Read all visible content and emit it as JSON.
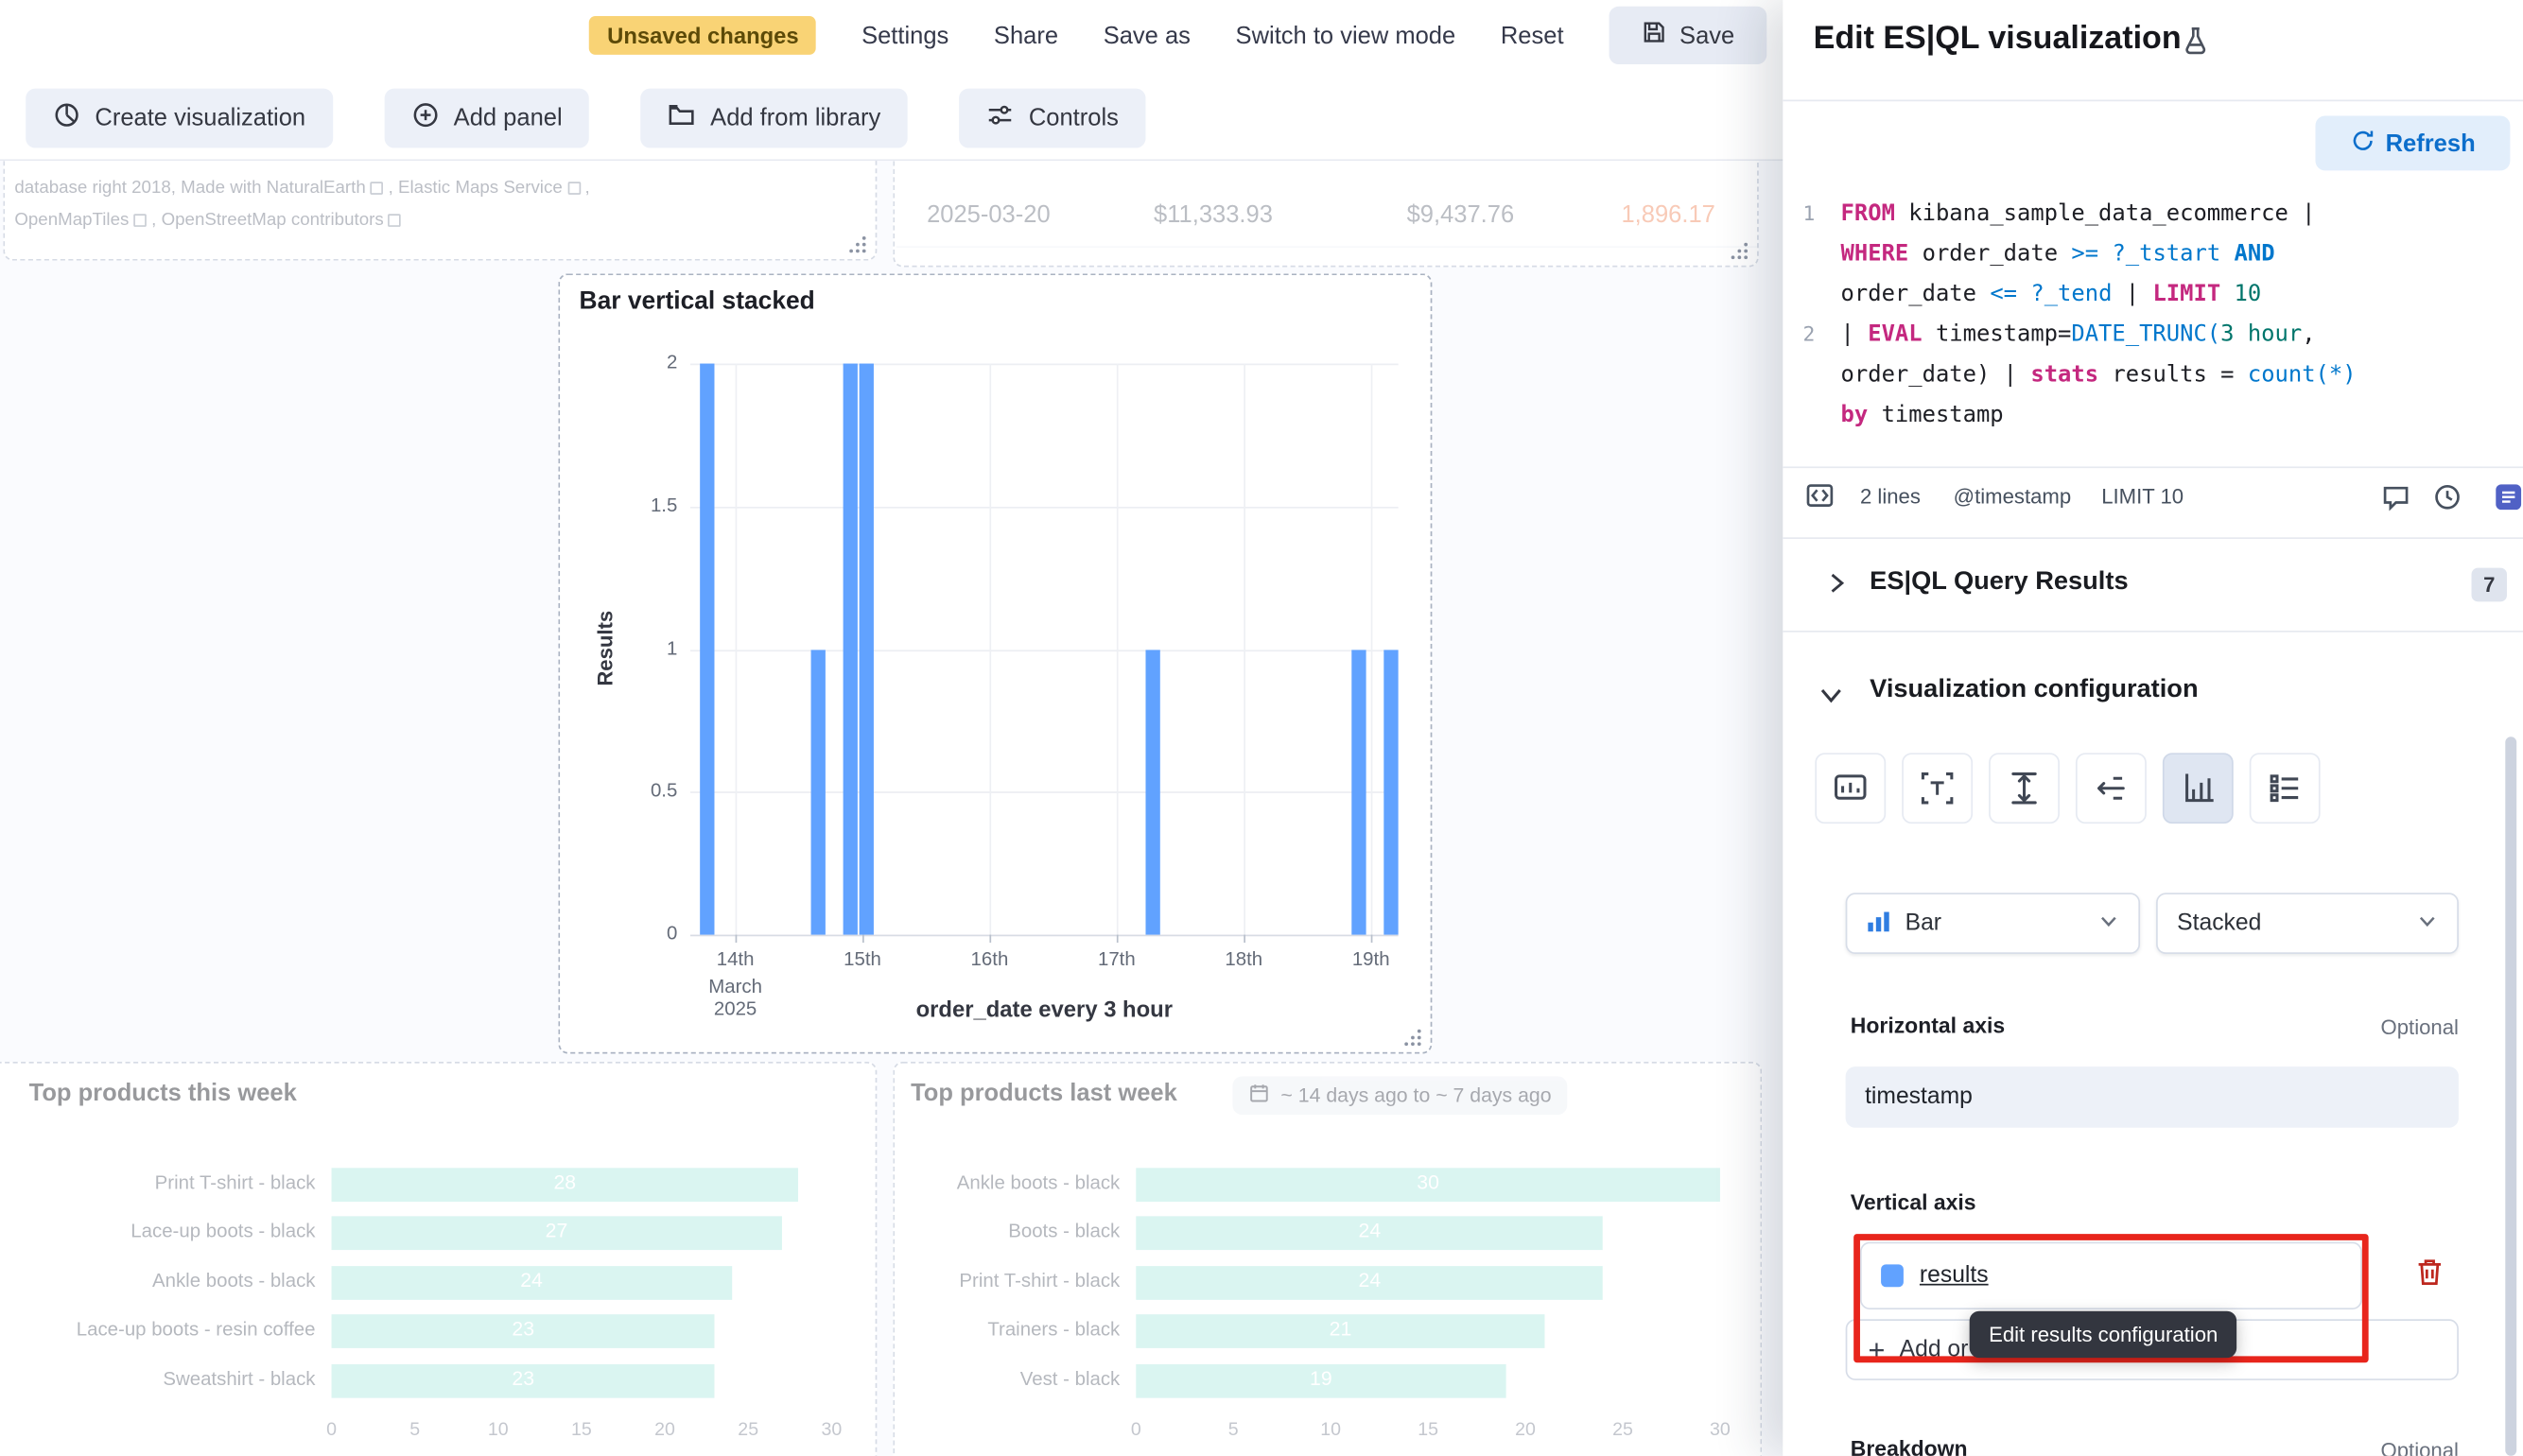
{
  "app_title": "Edit ES|QL visualization",
  "colors": {
    "accent_blue": "#0077CC",
    "bar_blue": "#61A2FF",
    "teal_bar": "#AEE9E1",
    "warning_badge_bg": "#F9D375",
    "annotation_red": "#E8251C",
    "danger_red": "#BD271E"
  },
  "top_toolbar": {
    "unsaved_badge": "Unsaved changes",
    "items": [
      "Settings",
      "Share",
      "Save as",
      "Switch to view mode",
      "Reset"
    ],
    "save_label": "Save"
  },
  "edit_toolbar": {
    "create_visualization": "Create visualization",
    "add_panel": "Add panel",
    "add_from_library": "Add from library",
    "controls": "Controls"
  },
  "map_attribution": {
    "line1_prefix": "database right 2018, ",
    "link1": "Made with NaturalEarth",
    "sep1": ", ",
    "link2": "Elastic Maps Service",
    "line1_suffix": ",",
    "link3": "OpenMapTiles",
    "sep2": ", ",
    "link4": "OpenStreetMap contributors"
  },
  "metrics_table": {
    "row": [
      "2025-03-20",
      "$11,333.93",
      "$9,437.76",
      "1,896.17"
    ]
  },
  "chart_data": [
    {
      "id": "bar_vertical_stacked",
      "type": "bar",
      "title": "Bar vertical stacked",
      "xlabel": "order_date every 3 hour",
      "ylabel": "Results",
      "ylim": [
        0,
        2
      ],
      "y_ticks": [
        0,
        0.5,
        1,
        1.5,
        2
      ],
      "x_ticks": [
        "14th",
        "15th",
        "16th",
        "17th",
        "18th",
        "19th"
      ],
      "x_context": "March 2025",
      "slots_per_day": 8,
      "bars": [
        {
          "slot": 0,
          "value": 2
        },
        {
          "slot": 7,
          "value": 1
        },
        {
          "slot": 9,
          "value": 2
        },
        {
          "slot": 10,
          "value": 2
        },
        {
          "slot": 28,
          "value": 1
        },
        {
          "slot": 41,
          "value": 1
        },
        {
          "slot": 43,
          "value": 1
        }
      ],
      "color": "#61A2FF",
      "grid": true,
      "legend": "none"
    },
    {
      "id": "top_products_this_week",
      "type": "bar",
      "orientation": "horizontal",
      "title": "Top products this week",
      "categories": [
        "Print T-shirt - black",
        "Lace-up boots - black",
        "Ankle boots - black",
        "Lace-up boots - resin coffee",
        "Sweatshirt - black"
      ],
      "values": [
        28,
        27,
        24,
        23,
        23
      ],
      "xlim": [
        0,
        30
      ],
      "x_ticks": [
        0,
        5,
        10,
        15,
        20,
        25,
        30
      ],
      "color": "#AEE9E1",
      "value_labels": true
    },
    {
      "id": "top_products_last_week",
      "type": "bar",
      "orientation": "horizontal",
      "title": "Top products last week",
      "time_badge": "~ 14 days ago to ~ 7 days ago",
      "categories": [
        "Ankle boots - black",
        "Boots - black",
        "Print T-shirt - black",
        "Trainers - black",
        "Vest - black"
      ],
      "values": [
        30,
        24,
        24,
        21,
        19
      ],
      "xlim": [
        0,
        30
      ],
      "x_ticks": [
        0,
        5,
        10,
        15,
        20,
        25,
        30
      ],
      "color": "#AEE9E1",
      "value_labels": true
    }
  ],
  "flyout": {
    "title": "Edit ES|QL visualization",
    "refresh_label": "Refresh",
    "editor": {
      "rows": [
        {
          "ln": "1",
          "tokens": [
            {
              "t": "FROM",
              "c": "kw"
            },
            {
              "t": " kibana_sample_data_ecommerce | ",
              "c": "tx"
            }
          ]
        },
        {
          "ln": "",
          "tokens": [
            {
              "t": "WHERE",
              "c": "kw"
            },
            {
              "t": " order_date ",
              "c": "tx"
            },
            {
              "t": ">=",
              "c": "op"
            },
            {
              "t": " ",
              "c": "tx"
            },
            {
              "t": "?_tstart",
              "c": "op"
            },
            {
              "t": " ",
              "c": "tx"
            },
            {
              "t": "AND",
              "c": "opb"
            }
          ]
        },
        {
          "ln": "",
          "tokens": [
            {
              "t": "order_date ",
              "c": "tx"
            },
            {
              "t": "<=",
              "c": "op"
            },
            {
              "t": " ",
              "c": "tx"
            },
            {
              "t": "?_tend",
              "c": "op"
            },
            {
              "t": " | ",
              "c": "tx"
            },
            {
              "t": "LIMIT",
              "c": "kw"
            },
            {
              "t": " ",
              "c": "tx"
            },
            {
              "t": "10",
              "c": "num"
            }
          ]
        },
        {
          "ln": "2",
          "tokens": [
            {
              "t": "| ",
              "c": "tx"
            },
            {
              "t": "EVAL",
              "c": "kw"
            },
            {
              "t": " timestamp=",
              "c": "tx"
            },
            {
              "t": "DATE_TRUNC(",
              "c": "fn"
            },
            {
              "t": "3 hour",
              "c": "num"
            },
            {
              "t": ",",
              "c": "tx"
            }
          ]
        },
        {
          "ln": "",
          "tokens": [
            {
              "t": "order_date) | ",
              "c": "tx"
            },
            {
              "t": "stats",
              "c": "kw"
            },
            {
              "t": " results = ",
              "c": "tx"
            },
            {
              "t": "count(*)",
              "c": "fn"
            }
          ]
        },
        {
          "ln": "",
          "tokens": [
            {
              "t": "by",
              "c": "kw"
            },
            {
              "t": " timestamp",
              "c": "tx"
            }
          ]
        }
      ],
      "footer": {
        "lines": "2 lines",
        "timestamp": "@timestamp",
        "limit": "LIMIT 10"
      }
    },
    "results_section": {
      "label": "ES|QL Query Results",
      "badge": "7"
    },
    "viz_section": {
      "label": "Visualization configuration"
    },
    "chart_type_value": "Bar",
    "stack_mode_value": "Stacked",
    "horizontal_axis": {
      "label": "Horizontal axis",
      "optional": "Optional",
      "value": "timestamp"
    },
    "vertical_axis": {
      "label": "Vertical axis",
      "field": "results",
      "add_label": "Add or drag-and-drop a field"
    },
    "tooltip": "Edit results configuration",
    "breakdown": {
      "label": "Breakdown",
      "optional": "Optional"
    }
  }
}
